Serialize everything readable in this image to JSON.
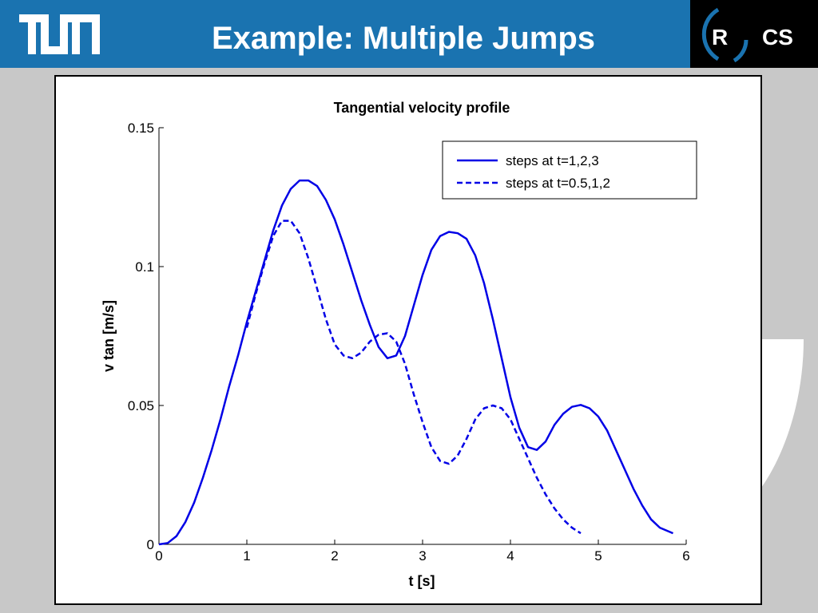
{
  "slide": {
    "title": "Example: Multiple Jumps",
    "logo_left": "TUM",
    "logo_right_r": "R",
    "logo_right_cs": "CS",
    "header_color": "#1a73b0"
  },
  "chart_data": {
    "type": "line",
    "title": "Tangential velocity profile",
    "xlabel": "t [s]",
    "ylabel": "v tan [m/s]",
    "xlim": [
      0,
      6
    ],
    "ylim": [
      0,
      0.15
    ],
    "xticks": [
      "0",
      "1",
      "2",
      "3",
      "4",
      "5",
      "6"
    ],
    "yticks": [
      "0",
      "0.05",
      "0.1",
      "0.15"
    ],
    "grid": false,
    "legend_position": "top-right",
    "color": "#0000e6",
    "series": [
      {
        "name": "steps at t=1,2,3",
        "style": "solid",
        "points": [
          [
            0,
            0
          ],
          [
            0.1,
            0.0005
          ],
          [
            0.2,
            0.003
          ],
          [
            0.3,
            0.008
          ],
          [
            0.4,
            0.015
          ],
          [
            0.5,
            0.024
          ],
          [
            0.6,
            0.034
          ],
          [
            0.7,
            0.045
          ],
          [
            0.8,
            0.057
          ],
          [
            0.9,
            0.068
          ],
          [
            1.0,
            0.08
          ],
          [
            1.1,
            0.091
          ],
          [
            1.2,
            0.102
          ],
          [
            1.3,
            0.113
          ],
          [
            1.4,
            0.122
          ],
          [
            1.5,
            0.128
          ],
          [
            1.6,
            0.131
          ],
          [
            1.7,
            0.131
          ],
          [
            1.8,
            0.129
          ],
          [
            1.9,
            0.124
          ],
          [
            2.0,
            0.117
          ],
          [
            2.1,
            0.108
          ],
          [
            2.2,
            0.098
          ],
          [
            2.3,
            0.088
          ],
          [
            2.4,
            0.079
          ],
          [
            2.5,
            0.071
          ],
          [
            2.6,
            0.067
          ],
          [
            2.7,
            0.068
          ],
          [
            2.8,
            0.075
          ],
          [
            2.9,
            0.086
          ],
          [
            3.0,
            0.097
          ],
          [
            3.1,
            0.106
          ],
          [
            3.2,
            0.111
          ],
          [
            3.3,
            0.1125
          ],
          [
            3.4,
            0.112
          ],
          [
            3.5,
            0.11
          ],
          [
            3.6,
            0.104
          ],
          [
            3.7,
            0.094
          ],
          [
            3.8,
            0.081
          ],
          [
            3.9,
            0.067
          ],
          [
            4.0,
            0.053
          ],
          [
            4.1,
            0.042
          ],
          [
            4.2,
            0.035
          ],
          [
            4.3,
            0.034
          ],
          [
            4.4,
            0.037
          ],
          [
            4.5,
            0.043
          ],
          [
            4.6,
            0.047
          ],
          [
            4.7,
            0.0495
          ],
          [
            4.8,
            0.0502
          ],
          [
            4.9,
            0.049
          ],
          [
            5.0,
            0.046
          ],
          [
            5.1,
            0.041
          ],
          [
            5.2,
            0.034
          ],
          [
            5.3,
            0.027
          ],
          [
            5.4,
            0.02
          ],
          [
            5.5,
            0.014
          ],
          [
            5.6,
            0.009
          ],
          [
            5.7,
            0.006
          ],
          [
            5.85,
            0.004
          ]
        ]
      },
      {
        "name": "steps at t=0.5,1,2",
        "style": "dashed",
        "points": [
          [
            1.0,
            0.078
          ],
          [
            1.1,
            0.09
          ],
          [
            1.2,
            0.101
          ],
          [
            1.3,
            0.111
          ],
          [
            1.4,
            0.1165
          ],
          [
            1.5,
            0.1165
          ],
          [
            1.6,
            0.112
          ],
          [
            1.7,
            0.103
          ],
          [
            1.8,
            0.092
          ],
          [
            1.9,
            0.081
          ],
          [
            2.0,
            0.072
          ],
          [
            2.1,
            0.068
          ],
          [
            2.2,
            0.067
          ],
          [
            2.3,
            0.069
          ],
          [
            2.4,
            0.073
          ],
          [
            2.5,
            0.0755
          ],
          [
            2.6,
            0.076
          ],
          [
            2.7,
            0.073
          ],
          [
            2.8,
            0.065
          ],
          [
            2.9,
            0.054
          ],
          [
            3.0,
            0.044
          ],
          [
            3.1,
            0.035
          ],
          [
            3.2,
            0.03
          ],
          [
            3.3,
            0.029
          ],
          [
            3.4,
            0.032
          ],
          [
            3.5,
            0.038
          ],
          [
            3.6,
            0.045
          ],
          [
            3.7,
            0.049
          ],
          [
            3.8,
            0.05
          ],
          [
            3.9,
            0.049
          ],
          [
            4.0,
            0.045
          ],
          [
            4.1,
            0.038
          ],
          [
            4.2,
            0.031
          ],
          [
            4.3,
            0.024
          ],
          [
            4.4,
            0.018
          ],
          [
            4.5,
            0.013
          ],
          [
            4.6,
            0.009
          ],
          [
            4.7,
            0.006
          ],
          [
            4.8,
            0.004
          ]
        ]
      }
    ]
  }
}
